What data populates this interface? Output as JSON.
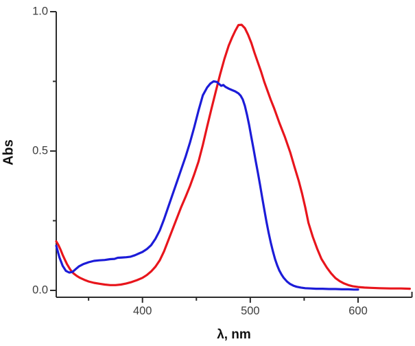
{
  "chart_data": {
    "type": "line",
    "title": "",
    "xlabel": "λ, nm",
    "ylabel": "Abs",
    "xlim": [
      320,
      650
    ],
    "ylim": [
      0,
      1.0
    ],
    "grid": false,
    "legend": "none",
    "x_major_ticks": [
      400,
      500,
      600
    ],
    "x_minor_ticks": [
      350,
      450,
      550
    ],
    "x_tick_labels": [
      "400",
      "500",
      "600"
    ],
    "y_major_ticks": [
      1.0,
      0.5,
      0.0
    ],
    "y_minor_ticks": [
      0.75,
      0.25
    ],
    "y_tick_labels": [
      "1.0",
      "0.5",
      "0.0"
    ],
    "axis_color": "#2b2b2b",
    "series": [
      {
        "name": "red-curve",
        "color": "#e8151c",
        "points": [
          [
            320,
            0.176
          ],
          [
            322,
            0.163
          ],
          [
            324,
            0.146
          ],
          [
            326,
            0.127
          ],
          [
            328,
            0.11
          ],
          [
            330,
            0.094
          ],
          [
            333,
            0.075
          ],
          [
            336,
            0.061
          ],
          [
            339,
            0.052
          ],
          [
            342,
            0.045
          ],
          [
            346,
            0.038
          ],
          [
            350,
            0.032
          ],
          [
            355,
            0.027
          ],
          [
            360,
            0.024
          ],
          [
            365,
            0.021
          ],
          [
            370,
            0.019
          ],
          [
            375,
            0.019
          ],
          [
            380,
            0.021
          ],
          [
            385,
            0.025
          ],
          [
            390,
            0.03
          ],
          [
            395,
            0.037
          ],
          [
            400,
            0.045
          ],
          [
            404,
            0.055
          ],
          [
            408,
            0.068
          ],
          [
            412,
            0.085
          ],
          [
            416,
            0.108
          ],
          [
            420,
            0.14
          ],
          [
            424,
            0.18
          ],
          [
            428,
            0.22
          ],
          [
            432,
            0.26
          ],
          [
            436,
            0.3
          ],
          [
            440,
            0.336
          ],
          [
            444,
            0.374
          ],
          [
            448,
            0.416
          ],
          [
            452,
            0.462
          ],
          [
            456,
            0.522
          ],
          [
            460,
            0.588
          ],
          [
            464,
            0.652
          ],
          [
            468,
            0.714
          ],
          [
            472,
            0.775
          ],
          [
            476,
            0.83
          ],
          [
            480,
            0.878
          ],
          [
            483,
            0.906
          ],
          [
            486,
            0.931
          ],
          [
            489,
            0.952
          ],
          [
            492,
            0.953
          ],
          [
            495,
            0.941
          ],
          [
            498,
            0.917
          ],
          [
            501,
            0.888
          ],
          [
            504,
            0.852
          ],
          [
            507,
            0.818
          ],
          [
            510,
            0.785
          ],
          [
            513,
            0.748
          ],
          [
            516,
            0.716
          ],
          [
            519,
            0.684
          ],
          [
            522,
            0.655
          ],
          [
            527,
            0.601
          ],
          [
            532,
            0.552
          ],
          [
            537,
            0.496
          ],
          [
            541,
            0.443
          ],
          [
            545,
            0.392
          ],
          [
            548,
            0.348
          ],
          [
            551,
            0.298
          ],
          [
            554,
            0.242
          ],
          [
            558,
            0.192
          ],
          [
            562,
            0.15
          ],
          [
            566,
            0.113
          ],
          [
            571,
            0.082
          ],
          [
            575,
            0.061
          ],
          [
            579,
            0.044
          ],
          [
            583,
            0.033
          ],
          [
            587,
            0.025
          ],
          [
            591,
            0.019
          ],
          [
            595,
            0.015
          ],
          [
            600,
            0.012
          ],
          [
            606,
            0.01
          ],
          [
            612,
            0.009
          ],
          [
            620,
            0.008
          ],
          [
            630,
            0.007
          ],
          [
            640,
            0.007
          ],
          [
            648,
            0.006
          ]
        ]
      },
      {
        "name": "blue-curve",
        "color": "#1c1cd8",
        "points": [
          [
            320,
            0.16
          ],
          [
            323,
            0.118
          ],
          [
            326,
            0.088
          ],
          [
            329,
            0.07
          ],
          [
            332,
            0.064
          ],
          [
            335,
            0.066
          ],
          [
            338,
            0.076
          ],
          [
            341,
            0.086
          ],
          [
            345,
            0.094
          ],
          [
            350,
            0.101
          ],
          [
            355,
            0.106
          ],
          [
            360,
            0.108
          ],
          [
            365,
            0.109
          ],
          [
            370,
            0.112
          ],
          [
            374,
            0.113
          ],
          [
            377,
            0.117
          ],
          [
            381,
            0.118
          ],
          [
            385,
            0.119
          ],
          [
            389,
            0.121
          ],
          [
            393,
            0.126
          ],
          [
            397,
            0.133
          ],
          [
            400,
            0.138
          ],
          [
            404,
            0.148
          ],
          [
            408,
            0.162
          ],
          [
            412,
            0.185
          ],
          [
            416,
            0.215
          ],
          [
            420,
            0.255
          ],
          [
            424,
            0.3
          ],
          [
            428,
            0.345
          ],
          [
            432,
            0.39
          ],
          [
            436,
            0.435
          ],
          [
            440,
            0.48
          ],
          [
            444,
            0.53
          ],
          [
            448,
            0.585
          ],
          [
            452,
            0.645
          ],
          [
            456,
            0.7
          ],
          [
            460,
            0.728
          ],
          [
            463,
            0.742
          ],
          [
            466,
            0.75
          ],
          [
            469,
            0.748
          ],
          [
            471,
            0.741
          ],
          [
            473,
            0.734
          ],
          [
            475,
            0.737
          ],
          [
            477,
            0.73
          ],
          [
            480,
            0.724
          ],
          [
            483,
            0.719
          ],
          [
            486,
            0.714
          ],
          [
            489,
            0.707
          ],
          [
            491,
            0.699
          ],
          [
            493,
            0.685
          ],
          [
            495,
            0.662
          ],
          [
            497,
            0.63
          ],
          [
            499,
            0.592
          ],
          [
            501,
            0.55
          ],
          [
            503,
            0.508
          ],
          [
            505,
            0.465
          ],
          [
            507,
            0.423
          ],
          [
            509,
            0.38
          ],
          [
            511,
            0.335
          ],
          [
            513,
            0.29
          ],
          [
            515,
            0.247
          ],
          [
            517,
            0.207
          ],
          [
            519,
            0.172
          ],
          [
            521,
            0.14
          ],
          [
            523,
            0.112
          ],
          [
            525,
            0.09
          ],
          [
            527,
            0.071
          ],
          [
            529,
            0.057
          ],
          [
            531,
            0.045
          ],
          [
            534,
            0.032
          ],
          [
            537,
            0.023
          ],
          [
            540,
            0.017
          ],
          [
            543,
            0.013
          ],
          [
            547,
            0.01
          ],
          [
            551,
            0.008
          ],
          [
            556,
            0.007
          ],
          [
            561,
            0.006
          ],
          [
            567,
            0.006
          ],
          [
            573,
            0.005
          ],
          [
            579,
            0.005
          ],
          [
            585,
            0.004
          ],
          [
            591,
            0.004
          ],
          [
            596,
            0.003
          ],
          [
            600,
            0.003
          ]
        ]
      }
    ]
  }
}
